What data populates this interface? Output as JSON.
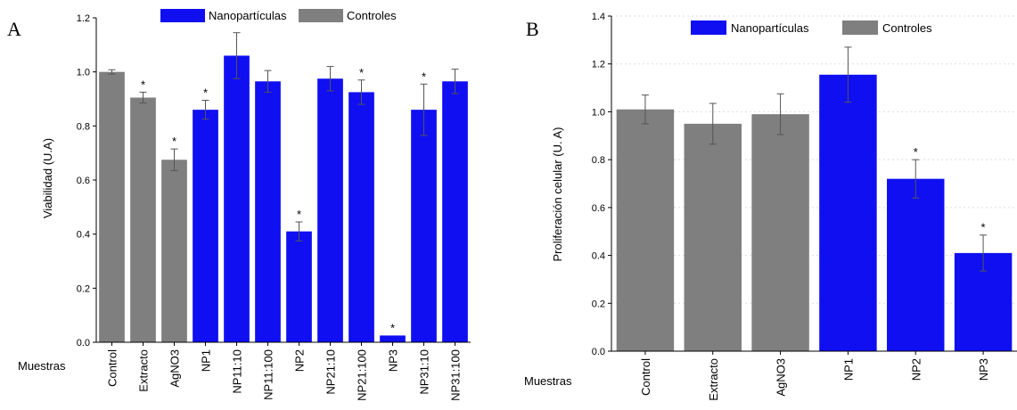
{
  "colors": {
    "nanoparticulas": "#0f0ff2",
    "controles": "#7f7f7f",
    "axis": "#000000",
    "grid": "#dddddd"
  },
  "chart_data": [
    {
      "type": "bar",
      "panel_label": "A",
      "ylabel": "Viabilidad (U.A)",
      "xlabel": "Muestras",
      "ylim": [
        0,
        1.2
      ],
      "yticks": [
        "0.0",
        "0.2",
        "0.4",
        "0.6",
        "0.8",
        "1.0",
        "1.2"
      ],
      "grid": false,
      "legend": {
        "position": "top",
        "entries": [
          {
            "label": "Nanopartículas",
            "color": "#0f0ff2"
          },
          {
            "label": "Controles",
            "color": "#7f7f7f"
          }
        ]
      },
      "categories": [
        "Control",
        "Extracto",
        "AgNO3",
        "NP1",
        "NP11:10",
        "NP11:100",
        "NP2",
        "NP21:10",
        "NP21:100",
        "NP3",
        "NP31:10",
        "NP31:100"
      ],
      "values": [
        1.0,
        0.905,
        0.675,
        0.86,
        1.06,
        0.965,
        0.41,
        0.975,
        0.925,
        0.025,
        0.86,
        0.965
      ],
      "errors": [
        0.008,
        0.02,
        0.04,
        0.035,
        0.085,
        0.04,
        0.035,
        0.045,
        0.045,
        0.0,
        0.095,
        0.045
      ],
      "groups": [
        "Controles",
        "Controles",
        "Controles",
        "Nanopartículas",
        "Nanopartículas",
        "Nanopartículas",
        "Nanopartículas",
        "Nanopartículas",
        "Nanopartículas",
        "Nanopartículas",
        "Nanopartículas",
        "Nanopartículas"
      ],
      "significance": [
        "",
        "*",
        "*",
        "*",
        "",
        "",
        "*",
        "",
        "*",
        "*",
        "*",
        ""
      ]
    },
    {
      "type": "bar",
      "panel_label": "B",
      "ylabel": "Proliferación celular (U. A)",
      "xlabel": "Muestras",
      "ylim": [
        0,
        1.4
      ],
      "yticks": [
        "0.0",
        "0.2",
        "0.4",
        "0.6",
        "0.8",
        "1.0",
        "1.2",
        "1.4"
      ],
      "grid": true,
      "legend": {
        "position": "top",
        "entries": [
          {
            "label": "Nanopartículas",
            "color": "#0f0ff2"
          },
          {
            "label": "Controles",
            "color": "#7f7f7f"
          }
        ]
      },
      "categories": [
        "Control",
        "Extracto",
        "AgNO3",
        "NP1",
        "NP2",
        "NP3"
      ],
      "values": [
        1.01,
        0.95,
        0.99,
        1.155,
        0.72,
        0.41
      ],
      "errors": [
        0.06,
        0.085,
        0.085,
        0.115,
        0.08,
        0.075
      ],
      "groups": [
        "Controles",
        "Controles",
        "Controles",
        "Nanopartículas",
        "Nanopartículas",
        "Nanopartículas"
      ],
      "significance": [
        "",
        "",
        "",
        "",
        "*",
        "*"
      ]
    }
  ]
}
